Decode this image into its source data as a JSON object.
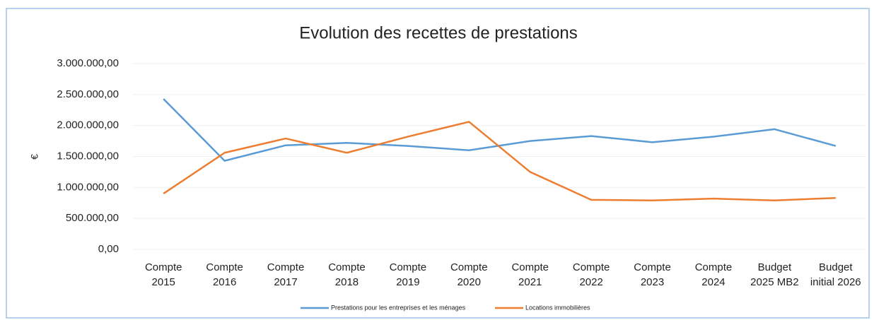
{
  "chart_data": {
    "type": "line",
    "title": "Evolution des recettes de prestations",
    "y_label": "€",
    "categories": [
      "Compte 2015",
      "Compte 2016",
      "Compte 2017",
      "Compte 2018",
      "Compte 2019",
      "Compte 2020",
      "Compte 2021",
      "Compte 2022",
      "Compte 2023",
      "Compte 2024",
      "Budget 2025 MB2",
      "Budget initial 2026"
    ],
    "series": [
      {
        "name": "Prestations pour les entreprises et les ménages",
        "color": "#5b9bd5",
        "values": [
          2430000,
          1430000,
          1680000,
          1720000,
          1670000,
          1600000,
          1750000,
          1830000,
          1730000,
          1820000,
          1940000,
          1670000
        ]
      },
      {
        "name": "Locations immobilières",
        "color": "#ed7d31",
        "values": [
          900000,
          1560000,
          1790000,
          1560000,
          1820000,
          2060000,
          1250000,
          800000,
          790000,
          820000,
          790000,
          830000
        ]
      }
    ],
    "ylim": [
      0,
      3000000
    ],
    "yticks": [
      {
        "value": 0,
        "label": "0,00"
      },
      {
        "value": 500000,
        "label": "500.000,00"
      },
      {
        "value": 1000000,
        "label": "1.000.000,00"
      },
      {
        "value": 1500000,
        "label": "1.500.000,00"
      },
      {
        "value": 2000000,
        "label": "2.000.000,00"
      },
      {
        "value": 2500000,
        "label": "2.500.000,00"
      },
      {
        "value": 3000000,
        "label": "3.000.000,00"
      }
    ],
    "grid": true,
    "legend": "bottom"
  }
}
